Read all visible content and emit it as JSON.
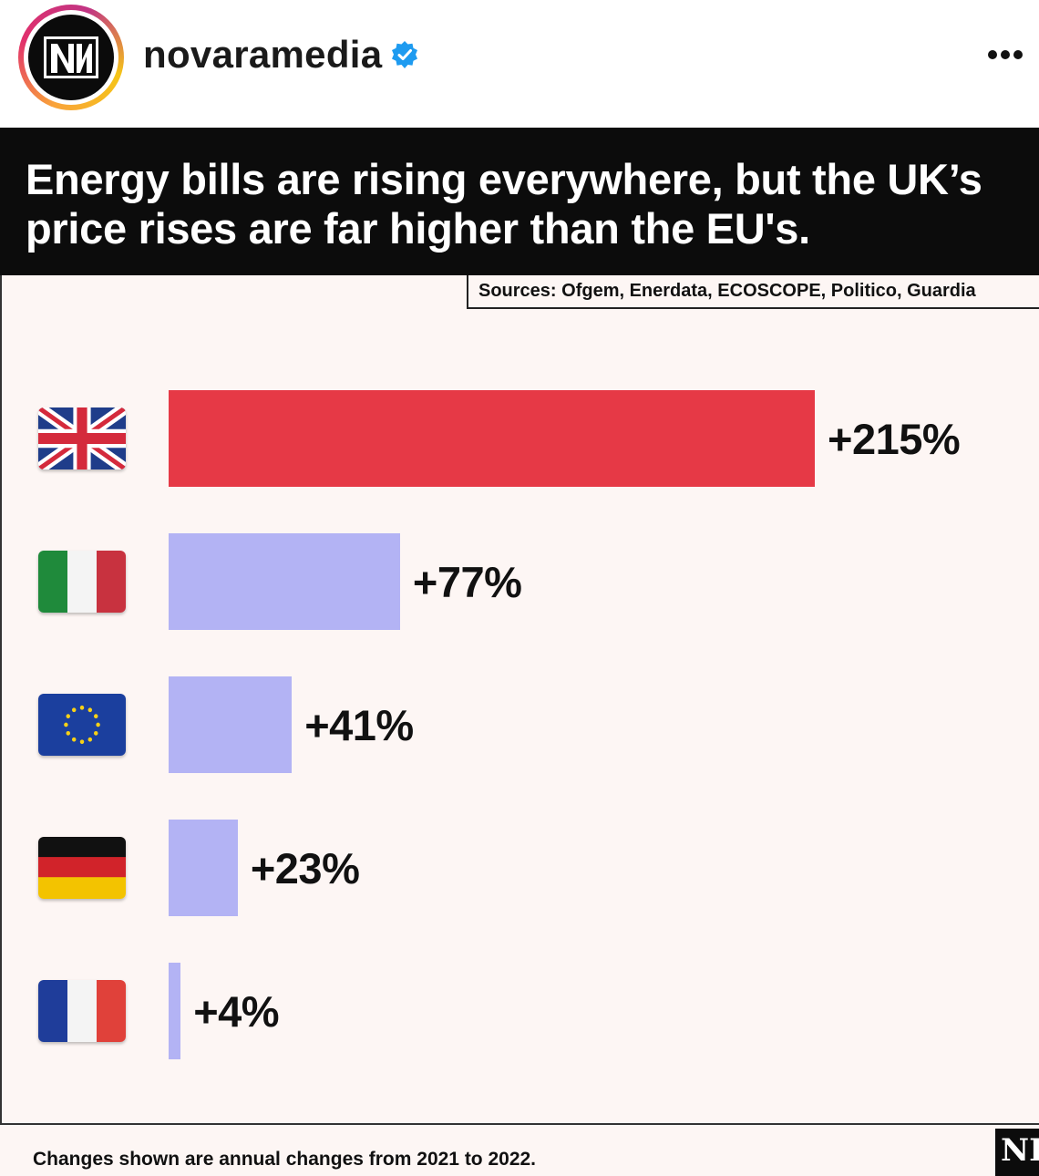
{
  "post": {
    "username": "novaramedia",
    "verified_icon": "verified-badge-icon",
    "more_icon": "more-options-icon",
    "avatar_logo": "NM",
    "ring_colors": [
      "#f9a33a",
      "#e1306c",
      "#c13584",
      "#f5c518"
    ]
  },
  "infographic": {
    "title": "Energy bills are rising everywhere, but the UK’s price rises are far higher than the EU's.",
    "sources": "Sources: Ofgem, Enerdata, ECOSCOPE, Politico, Guardia",
    "footnote": "Changes shown are annual changes from 2021 to 2022.",
    "corner_logo": "NI"
  },
  "chart_data": {
    "type": "bar",
    "orientation": "horizontal",
    "title": "Energy bills are rising everywhere, but the UK’s price rises are far higher than the EU's.",
    "categories": [
      "uk-flag-icon",
      "italy-flag-icon",
      "eu-flag-icon",
      "germany-flag-icon",
      "france-flag-icon"
    ],
    "values": [
      215,
      77,
      41,
      23,
      4
    ],
    "labels": [
      "+215%",
      "+77%",
      "+41%",
      "+23%",
      "+4%"
    ],
    "unit": "%",
    "xlim": [
      0,
      215
    ],
    "grid": false,
    "legend": "none",
    "colors": {
      "highlight": "#e63946",
      "others": "#b3b3f4",
      "background": "#fdf6f4",
      "title_band": "#0c0c0c"
    }
  }
}
